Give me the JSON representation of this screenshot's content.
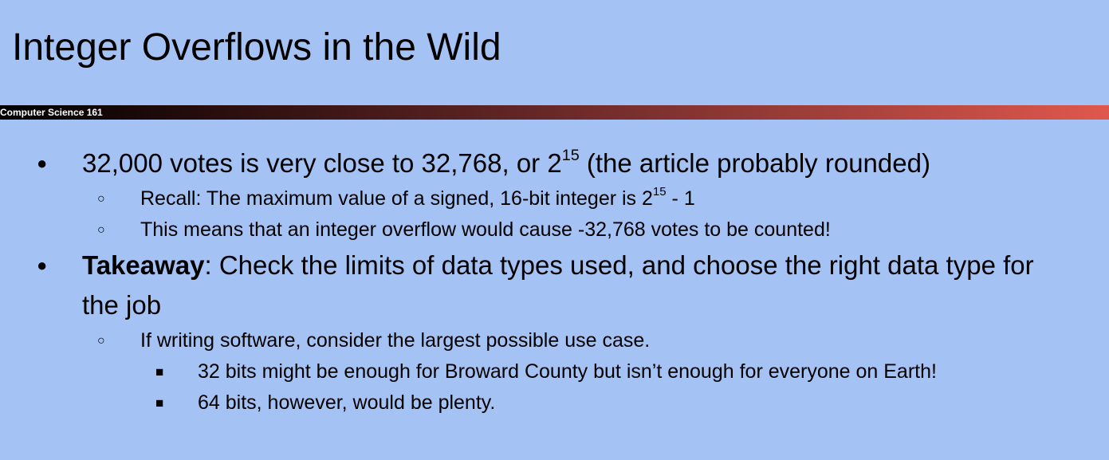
{
  "slide": {
    "title": "Integer Overflows in the Wild",
    "banner_label": "Computer Science 161"
  },
  "bullets": {
    "b1": {
      "text_a": "32,000 votes is very close to 32,768, or 2",
      "sup": "15",
      "text_b": " (the article probably rounded)",
      "sub1": {
        "text_a": "Recall: The maximum value of a signed, 16-bit integer is 2",
        "sup": "15",
        "text_b": " - 1"
      },
      "sub2": {
        "text": "This means that an integer overflow would cause -32,768 votes to be counted!"
      }
    },
    "b2": {
      "bold": "Takeaway",
      "text": ": Check the limits of data types used, and choose the right data type for the job",
      "sub1": {
        "text": "If writing software, consider the largest possible use case.",
        "sub1": {
          "text": "32 bits might be enough for Broward County but isn’t enough for everyone on Earth!"
        },
        "sub2": {
          "text": "64 bits, however, would be plenty."
        }
      }
    }
  },
  "markers": {
    "level1": "●",
    "level2": "○",
    "level3": "■"
  }
}
